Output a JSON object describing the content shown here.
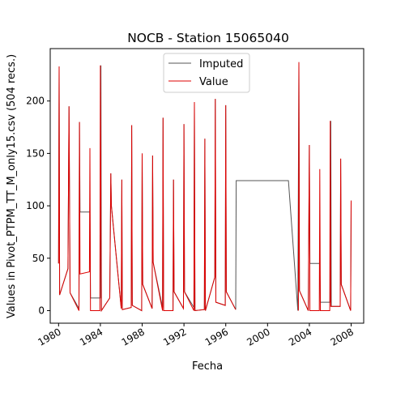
{
  "chart_data": {
    "type": "line",
    "title": "NOCB - Station 15065040",
    "xlabel": "Fecha",
    "ylabel": "Values in Pivot_PTPM_TT_M_only15.csv (504 recs.)",
    "xlim": [
      1979.2,
      2009.2
    ],
    "ylim": [
      -12,
      250
    ],
    "xticks": [
      1980,
      1984,
      1988,
      1992,
      1996,
      2000,
      2004,
      2008
    ],
    "yticks": [
      0,
      50,
      100,
      150,
      200
    ],
    "grid": false,
    "legend": "upper center",
    "series": [
      {
        "name": "Imputed",
        "color": "#555555",
        "points": [
          [
            1980.0,
            45
          ],
          [
            1980.05,
            233
          ],
          [
            1980.1,
            15
          ],
          [
            1980.9,
            40
          ],
          [
            1981.0,
            195
          ],
          [
            1981.1,
            17
          ],
          [
            1981.95,
            2
          ],
          [
            1982.0,
            180
          ],
          [
            1982.05,
            94
          ],
          [
            1983.0,
            94
          ],
          [
            1983.05,
            12
          ],
          [
            1984.0,
            12
          ],
          [
            1984.05,
            234
          ],
          [
            1984.1,
            0
          ],
          [
            1984.9,
            12
          ],
          [
            1985.0,
            131
          ],
          [
            1985.05,
            100
          ],
          [
            1986.0,
            2
          ],
          [
            1986.05,
            125
          ],
          [
            1986.1,
            1
          ],
          [
            1986.95,
            3
          ],
          [
            1987.0,
            177
          ],
          [
            1987.05,
            5
          ],
          [
            1987.95,
            0
          ],
          [
            1988.0,
            150
          ],
          [
            1988.05,
            25
          ],
          [
            1988.95,
            2
          ],
          [
            1989.0,
            148
          ],
          [
            1989.05,
            46
          ],
          [
            1989.95,
            3
          ],
          [
            1990.0,
            184
          ],
          [
            1990.05,
            0
          ],
          [
            1990.95,
            0
          ],
          [
            1991.0,
            125
          ],
          [
            1991.05,
            18
          ],
          [
            1991.95,
            2
          ],
          [
            1992.0,
            178
          ],
          [
            1992.05,
            18
          ],
          [
            1992.95,
            3
          ],
          [
            1993.0,
            199
          ],
          [
            1993.05,
            0
          ],
          [
            1993.95,
            1
          ],
          [
            1994.0,
            164
          ],
          [
            1994.05,
            0
          ],
          [
            1994.95,
            32
          ],
          [
            1995.0,
            202
          ],
          [
            1995.05,
            8
          ],
          [
            1995.95,
            5
          ],
          [
            1996.0,
            196
          ],
          [
            1996.05,
            18
          ],
          [
            1996.95,
            1
          ],
          [
            1997.0,
            124
          ],
          [
            2002.0,
            124
          ],
          [
            2002.9,
            0
          ],
          [
            2003.0,
            237
          ],
          [
            2003.05,
            19
          ],
          [
            2003.9,
            0
          ],
          [
            2004.0,
            158
          ],
          [
            2004.05,
            45
          ],
          [
            2005.0,
            45
          ],
          [
            2005.05,
            8
          ],
          [
            2006.0,
            8
          ],
          [
            2006.05,
            181
          ],
          [
            2006.1,
            4
          ],
          [
            2006.95,
            4
          ],
          [
            2007.0,
            145
          ],
          [
            2007.05,
            25
          ],
          [
            2007.95,
            0
          ],
          [
            2008.0,
            105
          ]
        ]
      },
      {
        "name": "Value",
        "color": "#dd0000",
        "points": [
          [
            1980.0,
            45
          ],
          [
            1980.05,
            233
          ],
          [
            1980.1,
            15
          ],
          [
            1980.9,
            40
          ],
          [
            1981.0,
            195
          ],
          [
            1981.1,
            17
          ],
          [
            1981.95,
            0
          ],
          [
            1982.0,
            180
          ],
          [
            1982.05,
            35
          ],
          [
            1982.95,
            37
          ],
          [
            1983.0,
            155
          ],
          [
            1983.05,
            0
          ],
          [
            1983.95,
            0
          ],
          [
            1984.0,
            234
          ],
          [
            1984.1,
            0
          ],
          [
            1984.9,
            12
          ],
          [
            1985.0,
            131
          ],
          [
            1985.05,
            100
          ],
          [
            1986.0,
            2
          ],
          [
            1986.05,
            125
          ],
          [
            1986.1,
            1
          ],
          [
            1986.95,
            3
          ],
          [
            1987.0,
            177
          ],
          [
            1987.05,
            5
          ],
          [
            1987.95,
            0
          ],
          [
            1988.0,
            150
          ],
          [
            1988.05,
            25
          ],
          [
            1988.95,
            2
          ],
          [
            1989.0,
            148
          ],
          [
            1989.05,
            46
          ],
          [
            1989.95,
            0
          ],
          [
            1990.0,
            184
          ],
          [
            1990.05,
            0
          ],
          [
            1990.95,
            0
          ],
          [
            1991.0,
            125
          ],
          [
            1991.05,
            18
          ],
          [
            1991.95,
            2
          ],
          [
            1992.0,
            178
          ],
          [
            1992.05,
            18
          ],
          [
            1992.95,
            0
          ],
          [
            1993.0,
            199
          ],
          [
            1993.05,
            0
          ],
          [
            1993.95,
            1
          ],
          [
            1994.0,
            164
          ],
          [
            1994.05,
            0
          ],
          [
            1994.95,
            32
          ],
          [
            1995.0,
            202
          ],
          [
            1995.05,
            8
          ],
          [
            1995.95,
            5
          ],
          [
            1996.0,
            196
          ],
          [
            1996.05,
            18
          ],
          [
            1996.95,
            1
          ]
        ]
      },
      {
        "name": "",
        "color": "#dd0000",
        "points": [
          [
            2002.95,
            0
          ],
          [
            2003.0,
            237
          ],
          [
            2003.05,
            19
          ],
          [
            2003.9,
            0
          ],
          [
            2004.0,
            158
          ],
          [
            2004.05,
            0
          ],
          [
            2004.95,
            0
          ],
          [
            2005.0,
            135
          ],
          [
            2005.05,
            0
          ],
          [
            2005.95,
            0
          ],
          [
            2006.0,
            181
          ],
          [
            2006.05,
            4
          ],
          [
            2006.95,
            4
          ],
          [
            2007.0,
            145
          ],
          [
            2007.05,
            25
          ],
          [
            2007.95,
            0
          ],
          [
            2008.0,
            105
          ]
        ]
      }
    ]
  }
}
